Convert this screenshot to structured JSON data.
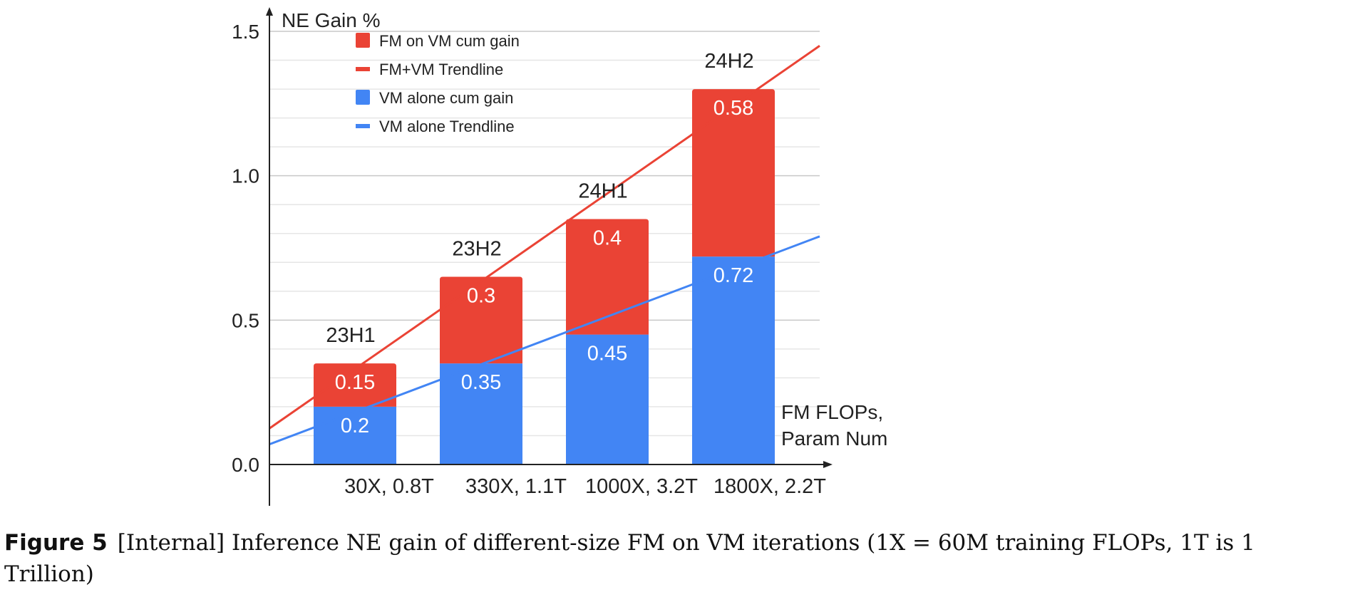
{
  "chart_data": {
    "type": "bar",
    "stacked": true,
    "y_axis_title": "NE Gain %",
    "x_axis_title_line1": "FM FLOPs,",
    "x_axis_title_line2": "Param Num",
    "categories": [
      {
        "flops_num": "30",
        "rest": "X, 0.8T"
      },
      {
        "flops_num": "330",
        "rest": "X, 1.1T"
      },
      {
        "flops_num": "1000",
        "rest": "X, 3.2T"
      },
      {
        "flops_num": "1800",
        "rest": "X, 2.2T"
      }
    ],
    "bar_labels": [
      "23H1",
      "23H2",
      "24H1",
      "24H2"
    ],
    "series": [
      {
        "name": "VM alone cum gain",
        "values": [
          0.2,
          0.35,
          0.45,
          0.72
        ],
        "value_labels": [
          "0.2",
          "0.35",
          "0.45",
          "0.72"
        ],
        "color": "#4285f4"
      },
      {
        "name": "FM on VM cum gain",
        "values": [
          0.15,
          0.3,
          0.4,
          0.58
        ],
        "value_labels": [
          "0.15",
          "0.3",
          "0.4",
          "0.58"
        ],
        "color": "#ea4335"
      }
    ],
    "trendlines": [
      {
        "name": "FM+VM Trendline",
        "color": "#ea4335",
        "start": [
          0,
          0.125
        ],
        "end": [
          4.4,
          1.45
        ]
      },
      {
        "name": "VM alone Trendline",
        "color": "#4285f4",
        "start": [
          0,
          0.07
        ],
        "end": [
          4.4,
          0.79
        ]
      }
    ],
    "legend": [
      {
        "label": "FM on VM cum gain",
        "kind": "box",
        "color": "#ea4335"
      },
      {
        "label": "FM+VM Trendline",
        "kind": "line",
        "color": "#ea4335"
      },
      {
        "label": "VM alone cum gain",
        "kind": "box",
        "color": "#4285f4"
      },
      {
        "label": "VM alone Trendline",
        "kind": "line",
        "color": "#4285f4"
      }
    ],
    "legend_position": "top-left",
    "ylim": [
      0,
      1.5
    ],
    "y_ticks": [
      0,
      0.5,
      1.0,
      1.5
    ],
    "y_tick_labels": [
      "0.0",
      "0.5",
      "1.0",
      "1.5"
    ],
    "x_domain": [
      0,
      4.4
    ],
    "grid": true,
    "minor_grid": true
  },
  "caption": {
    "label": "Figure 5",
    "text": "[Internal] Inference NE gain of different-size FM on VM iterations (1X = 60M training FLOPs, 1T is 1 Trillion)"
  }
}
